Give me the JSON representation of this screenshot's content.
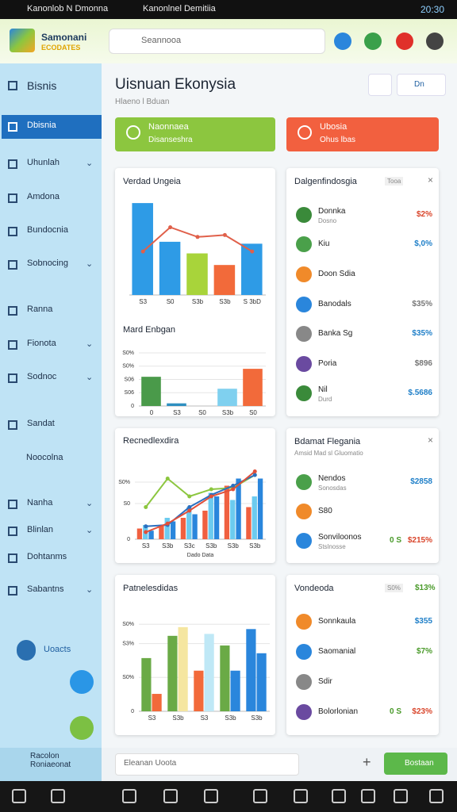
{
  "status_bar": {
    "app1": "Kanonlob N Dmonna",
    "app2": "Kanonlnel Demitiia",
    "time": "20:30"
  },
  "header": {
    "brand": "Samonani",
    "brand_sub": "ECODATES",
    "search_placeholder": "Seannooa"
  },
  "sidebar": {
    "items": [
      "Bisnis",
      "Dbisnia",
      "Uhunlah",
      "Amdona",
      "Bundocnia",
      "Sobnocing",
      "Ranna",
      "Fionota",
      "Sodnoc",
      "Sandat",
      "Noocolna",
      "Nanha",
      "Blinlan",
      "Dohtanms",
      "Sabantns"
    ],
    "user": "Uoacts",
    "footer": "Racolon Roniaeonat"
  },
  "page": {
    "title": "Uisnuan Ekonysia",
    "subtitle": "Hlaeno l Bduan",
    "button": "Dn"
  },
  "banners": [
    {
      "title": "Naonnaea",
      "text": "Disanseshra",
      "color": "#8cc63f"
    },
    {
      "title": "Ubosia",
      "text": "Ohus lbas",
      "color": "#f2603f"
    }
  ],
  "charts": [
    {
      "type": "bar",
      "title": "Verdad Ungeia",
      "categories": [
        "S3",
        "S0",
        "S3b",
        "S3b",
        "S 3bD"
      ],
      "ylim": [
        0,
        100
      ],
      "series": [
        {
          "type": "bar",
          "colors": [
            "#2e9be6",
            "#2e9be6",
            "#a8d43a",
            "#f26a3a",
            "#2e9be6"
          ],
          "values": [
            95,
            55,
            43,
            31,
            53
          ]
        },
        {
          "type": "line",
          "color": "#e0604a",
          "values": [
            45,
            70,
            60,
            62,
            45
          ]
        }
      ]
    },
    {
      "type": "bar",
      "title": "Mard Enbgan",
      "categories": [
        "0",
        "S3",
        "S0",
        "S3b",
        "S0"
      ],
      "ylim": [
        0,
        40
      ],
      "yticks": [
        {
          "value": 0,
          "label": "0"
        },
        {
          "value": 10,
          "label": "S06"
        },
        {
          "value": 20,
          "label": "S06"
        },
        {
          "value": 30,
          "label": "S0%"
        },
        {
          "value": 40,
          "label": "S0%"
        }
      ],
      "grid": true,
      "series": [
        {
          "type": "bar",
          "colors": [
            "#4a9a4a",
            "#2e8fc0",
            "#7fd0ef",
            "#7fd0ef",
            "#f26a3a"
          ],
          "values": [
            22,
            2,
            null,
            13,
            28
          ]
        }
      ]
    },
    {
      "type": "bar",
      "title": "Recnedlexdira",
      "x_label": "Dado Data",
      "categories": [
        "S3",
        "S3b",
        "S3c",
        "S3b",
        "S3b",
        "S3b"
      ],
      "ylim": [
        0,
        100
      ],
      "yticks": [
        {
          "value": 0,
          "label": "0"
        },
        {
          "value": 50,
          "label": "S0"
        },
        {
          "value": 80,
          "label": "S0%"
        }
      ],
      "grid": true,
      "series": [
        {
          "type": "bar",
          "color": "#f06040",
          "values": [
            15,
            20,
            30,
            40,
            75,
            45
          ]
        },
        {
          "type": "bar",
          "color": "#6ccbef",
          "values": [
            20,
            30,
            45,
            65,
            55,
            60
          ]
        },
        {
          "type": "bar",
          "color": "#2a86dc",
          "values": [
            12,
            25,
            35,
            60,
            85,
            85
          ]
        },
        {
          "type": "line",
          "color": "#8cc63f",
          "values": [
            45,
            85,
            60,
            70,
            72,
            90
          ]
        },
        {
          "type": "line",
          "color": "#2a6fc0",
          "values": [
            18,
            20,
            45,
            62,
            75,
            90
          ]
        },
        {
          "type": "line",
          "color": "#e0503a",
          "values": [
            10,
            22,
            40,
            60,
            70,
            95
          ]
        }
      ]
    },
    {
      "type": "bar",
      "title": "Patnelesdidas",
      "categories": [
        "S3",
        "S3b",
        "S3",
        "S3b",
        "S3b"
      ],
      "ylim": [
        0,
        100
      ],
      "yticks": [
        {
          "value": 0,
          "label": "0"
        },
        {
          "value": 35,
          "label": "S0%"
        },
        {
          "value": 70,
          "label": "S3%"
        },
        {
          "value": 90,
          "label": "S0%"
        }
      ],
      "grid": true,
      "series": [
        {
          "type": "bar",
          "colors": [
            "#6aaa46",
            "#6aaa46",
            "#f26a3a",
            "#6aaa46",
            "#2a86dc"
          ],
          "values": [
            55,
            78,
            42,
            68,
            85
          ]
        },
        {
          "type": "bar",
          "colors": [
            "#f26a3a",
            "#f5e6a0",
            "#bfe8f6",
            "#2a86dc",
            "#2a86dc"
          ],
          "values": [
            18,
            87,
            80,
            42,
            60
          ]
        }
      ]
    }
  ],
  "lists": [
    {
      "title": "Dalgenfindosgia",
      "tag": "Tooa",
      "rows": [
        {
          "label": "Donnka",
          "sub": "Dosno",
          "value": "$2%",
          "value_color": "#d9452b"
        },
        {
          "label": "Kiu",
          "value": "$,0%",
          "value_color": "#1f7fc8"
        },
        {
          "label": "Doon Sdia"
        },
        {
          "label": "Banodals",
          "value": "$35%",
          "value_color": "#777777"
        },
        {
          "label": "Banka Sg",
          "value": "$35%",
          "value_color": "#1f7fc8"
        },
        {
          "label": "Poria",
          "value": "$896",
          "value_color": "#777777"
        },
        {
          "label": "Nil",
          "sub": "Durd",
          "value": "$.5686",
          "value_color": "#1f7fc8"
        }
      ]
    },
    {
      "title": "Bdamat Flegania",
      "subtitle": "Amsid Mad sl Gluomatio",
      "rows": [
        {
          "label": "Nendos",
          "sub": "Sonosdas",
          "value": "$2858",
          "value_color": "#1f7fc8"
        },
        {
          "label": "S80"
        },
        {
          "label": "Sonviloonos",
          "sub": "Stslnosse",
          "extra": "0 S",
          "value": "$215%",
          "value_color": "#d9452b"
        }
      ]
    },
    {
      "title": "Vondeoda",
      "tag": "S0%",
      "head_value": "$13%",
      "rows": [
        {
          "label": "Sonnkaula",
          "value": "$355",
          "value_color": "#1f7fc8"
        },
        {
          "label": "Saomanial",
          "value": "$7%",
          "value_color": "#4a9a2a"
        },
        {
          "label": "Sdir"
        },
        {
          "label": "Bolorlonian",
          "extra": "0 S",
          "value": "$23%",
          "value_color": "#d9452b"
        }
      ]
    }
  ],
  "footer_bar": {
    "input": "Eleanan Uoota",
    "button": "Bostaan"
  }
}
